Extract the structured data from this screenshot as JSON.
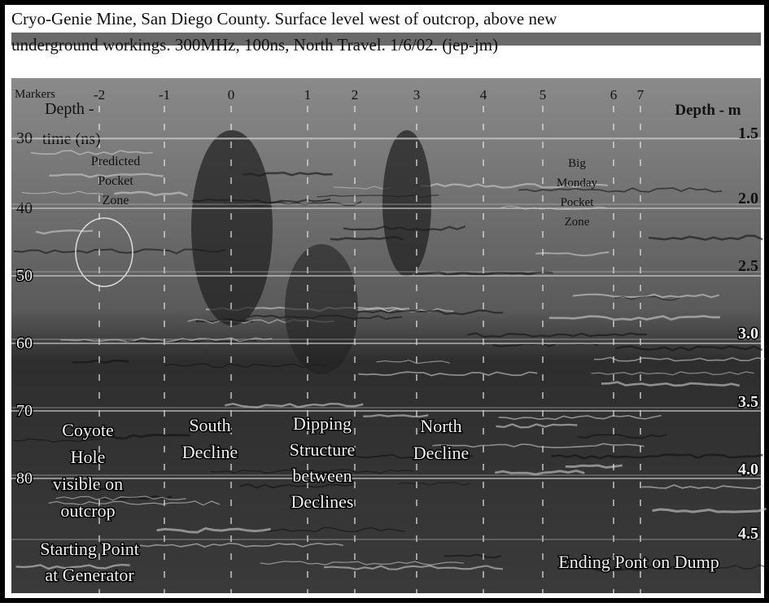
{
  "header": {
    "lines": [
      "Cryo-Genie Mine, San Diego County. Surface level west of outcrop, above new",
      "underground workings.  300MHz, 100ns, North Travel. 1/6/02. (jep-jm)"
    ]
  },
  "markers": {
    "label": "Markers",
    "values": [
      "-2",
      "-1",
      "0",
      "1",
      "2",
      "3",
      "4",
      "5",
      "6",
      "7"
    ]
  },
  "time_axis": {
    "label_lines": [
      "Depth -",
      "time (ns)"
    ],
    "ticks": [
      "30",
      "40",
      "50",
      "60",
      "70",
      "80"
    ]
  },
  "depth_axis": {
    "label": "Depth - m",
    "ticks": [
      "1.5",
      "2.0",
      "2.5",
      "3.0",
      "3.5",
      "4.0",
      "4.5"
    ]
  },
  "annotations": [
    {
      "lines": [
        "Predicted",
        "Pocket",
        "Zone"
      ]
    },
    {
      "lines": [
        "Big",
        "Monday",
        "Pocket",
        "Zone"
      ]
    },
    {
      "lines": [
        "Coyote",
        "Hole",
        "visible on",
        "outcrop"
      ]
    },
    {
      "lines": [
        "South",
        "Decline"
      ]
    },
    {
      "lines": [
        "Dipping",
        "Structure",
        "between",
        "Declines"
      ]
    },
    {
      "lines": [
        "North",
        "Decline"
      ]
    },
    {
      "lines": [
        "Starting Point",
        "at Generator"
      ]
    },
    {
      "lines": [
        "Ending Pont on Dump"
      ]
    }
  ]
}
